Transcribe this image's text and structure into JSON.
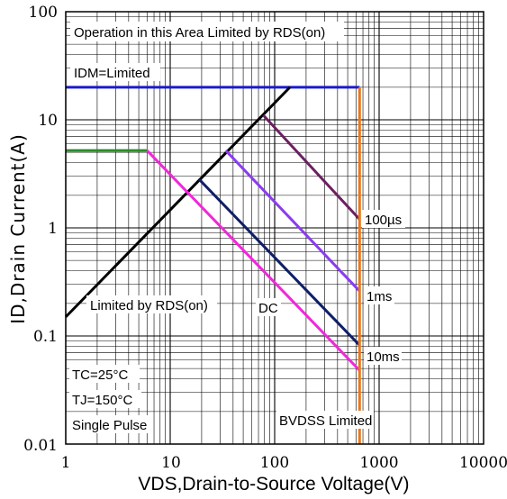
{
  "chart_data": {
    "type": "line",
    "title": "",
    "xlabel": "VDS,Drain-to-Source Voltage(V)",
    "ylabel": "ID,Drain Current(A)",
    "x_scale": "log",
    "y_scale": "log",
    "xlim": [
      1,
      10000
    ],
    "ylim": [
      0.01,
      100
    ],
    "grid": true,
    "x_ticks": [
      "1",
      "10",
      "100",
      "1000",
      "10000"
    ],
    "y_ticks": [
      "100",
      "10",
      "1",
      "0.1",
      "0.01"
    ],
    "series": [
      {
        "name": "IDM=Limited",
        "color": "#1a1acc",
        "points": [
          [
            1,
            20
          ],
          [
            650,
            20
          ]
        ]
      },
      {
        "name": "",
        "color": "#2a8a2a",
        "points": [
          [
            1,
            5.2
          ],
          [
            6,
            5.2
          ]
        ]
      },
      {
        "name": "Limited by RDS(on)",
        "color": "#000000",
        "points": [
          [
            1,
            0.15
          ],
          [
            140,
            20
          ]
        ]
      },
      {
        "name": "100µs",
        "color": "#6b2060",
        "points": [
          [
            78,
            11
          ],
          [
            650,
            1.2
          ]
        ]
      },
      {
        "name": "1ms",
        "color": "#8a3cf0",
        "points": [
          [
            34,
            5.2
          ],
          [
            650,
            0.26
          ]
        ]
      },
      {
        "name": "10ms",
        "color": "#0f1f66",
        "points": [
          [
            19,
            2.8
          ],
          [
            650,
            0.082
          ]
        ]
      },
      {
        "name": "DC",
        "color": "#f028d8",
        "points": [
          [
            6,
            5.2
          ],
          [
            650,
            0.048
          ]
        ]
      },
      {
        "name": "BVDSS Limited",
        "color": "#e87820",
        "points": [
          [
            650,
            0.01
          ],
          [
            650,
            20
          ]
        ]
      }
    ],
    "annotations": {
      "top_note": "Operation in this Area Limited by RDS(on)",
      "idm": "IDM=Limited",
      "rds": "Limited by RDS(on)",
      "dc": "DC",
      "us100": "100µs",
      "ms1": "1ms",
      "ms10": "10ms",
      "tc": "TC=25°C",
      "tj": "TJ=150°C",
      "pulse": "Single Pulse",
      "bvdss": "BVDSS Limited"
    }
  }
}
